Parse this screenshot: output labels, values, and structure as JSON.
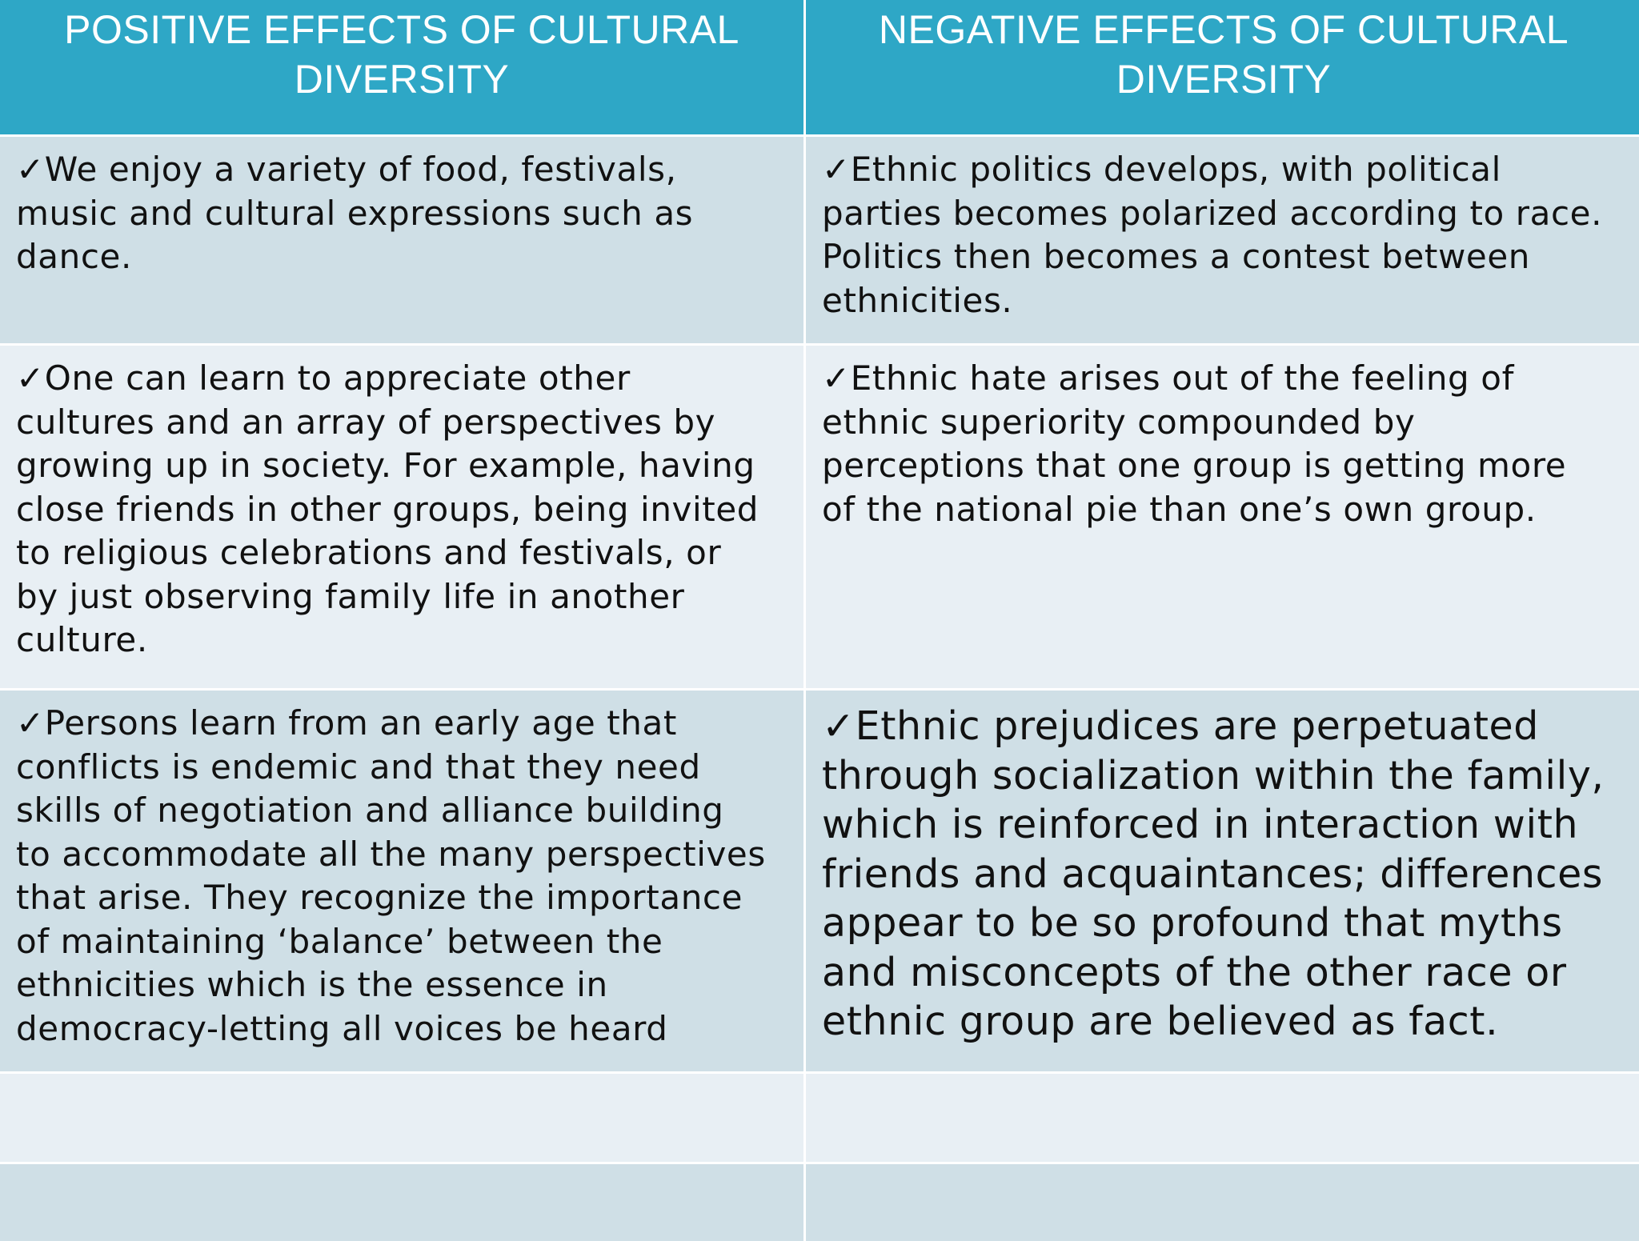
{
  "table": {
    "headers": {
      "positive": "POSITIVE EFFECTS OF CULTURAL DIVERSITY",
      "negative": "NEGATIVE EFFECTS  OF CULTURAL DIVERSITY"
    },
    "rows": [
      {
        "positive_check": "✓",
        "positive": "We enjoy a variety of food, festivals,\nmusic and cultural expressions such as\ndance.",
        "negative_check": "✓",
        "negative": "Ethnic politics develops, with political\nparties becomes polarized according to race.\nPolitics then becomes a contest between\nethnicities."
      },
      {
        "positive_check": "✓",
        "positive": "One can learn to appreciate  other\ncultures  and an array  of perspectives by\ngrowing up in society. For example, having\nclose friends in other groups, being invited\nto religious celebrations and festivals, or\nby just observing family life in another\nculture.",
        "negative_check": "✓",
        "negative": "Ethnic hate arises out of the feeling of\nethnic superiority compounded  by\nperceptions that one group is getting more\nof the national pie than one’s own group."
      },
      {
        "positive_check": "✓",
        "positive": "Persons learn from an early age that\nconflicts is endemic and that they need\nskills of negotiation and alliance building\nto accommodate all the many perspectives\nthat arise. They recognize the importance\nof maintaining ‘balance’ between  the\nethnicities which is the essence in\ndemocracy-letting all voices be heard",
        "negative_check": "✓",
        "negative": "Ethnic prejudices are perpetuated\nthrough socialization within the family,\nwhich is reinforced in interaction  with\nfriends and acquaintances; differences\nappear to be so profound that myths\nand misconcepts of the other race or\nethnic group are believed as fact."
      }
    ],
    "empty_rows": 2
  }
}
